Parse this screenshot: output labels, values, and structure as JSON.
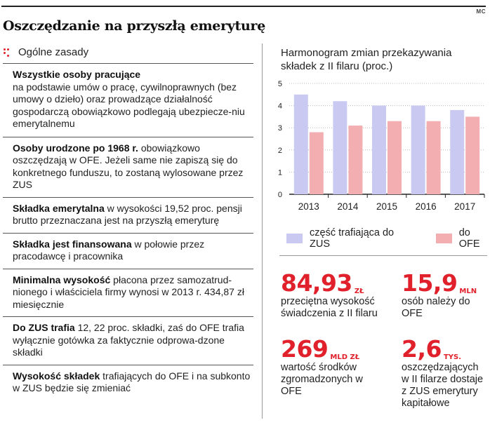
{
  "credit": "MC",
  "title": "Oszczędzanie na przyszłą emeryturę",
  "section_title": "Ogólne zasady",
  "rules": [
    {
      "bold": "Wszystkie osoby pracujące",
      "text": "na podstawie umów o pracę, cywilnoprawnych (bez umowy o dzieło) oraz prowadzące działalność gospodarczą obowiązkowo podlegają ubezpiecze-niu emerytalnemu"
    },
    {
      "bold": "Osoby urodzone po 1968 r.",
      "text": " obowiązkowo oszczędzają w OFE. Jeżeli same nie zapiszą się do konkretnego funduszu, to zostaną wylosowane przez ZUS"
    },
    {
      "bold": "Składka emerytalna",
      "text": " w wysokości 19,52 proc. pensji brutto przeznaczana jest na przyszłą emeryturę"
    },
    {
      "bold": "Składka jest finansowana",
      "text": " w połowie przez pracodawcę i pracownika"
    },
    {
      "bold": "Minimalna wysokość",
      "text": " płacona przez samozatrud-nionego i właściciela firmy wynosi w 2013 r. 434,87 zł miesięcznie"
    },
    {
      "bold": "Do ZUS trafia",
      "text": " 12, 22 proc. składki, zaś do OFE trafia wyłącznie gotówka za faktycznie odprowa-dzone składki"
    },
    {
      "bold": "Wysokość składek",
      "text": " trafiających do OFE i na subkonto w ZUS będzie się zmieniać"
    }
  ],
  "chart_data": {
    "type": "bar",
    "title": "Harmonogram zmian przekazywania składek z II filaru (proc.)",
    "categories": [
      "2013",
      "2014",
      "2015",
      "2016",
      "2017"
    ],
    "series": [
      {
        "name": "część trafiająca do ZUS",
        "values": [
          4.5,
          4.2,
          4.0,
          4.0,
          3.8
        ],
        "color": "#c9c9f2"
      },
      {
        "name": "do OFE",
        "values": [
          2.8,
          3.1,
          3.3,
          3.3,
          3.5
        ],
        "color": "#f2aeb0"
      }
    ],
    "yticks": [
      0,
      1,
      2,
      3,
      4,
      5
    ],
    "ylim": [
      0,
      5
    ],
    "grid": true,
    "legend": "bottom"
  },
  "stats": [
    {
      "value": "84,93",
      "unit": "ZŁ",
      "label": "przeciętna wysokość świadczenia z II filaru"
    },
    {
      "value": "15,9",
      "unit": "MLN",
      "label": "osób należy do OFE"
    },
    {
      "value": "269",
      "unit": "MLD ZŁ",
      "label": "wartość środków zgromadzonych w OFE"
    },
    {
      "value": "2,6",
      "unit": "TYS.",
      "label": "oszczędzających w II filarze dostaje z ZUS emerytury kapitałowe"
    }
  ],
  "colors": {
    "accent": "#e0202a",
    "zus": "#c9c9f2",
    "ofe": "#f2aeb0"
  }
}
